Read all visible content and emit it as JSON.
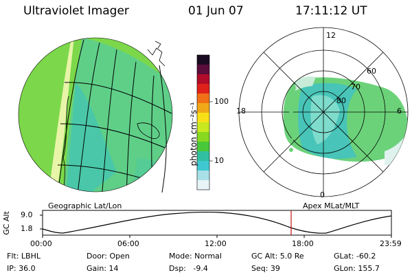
{
  "header": {
    "title": "Ultraviolet Imager",
    "date": "01 Jun 07",
    "time": "17:11:12 UT"
  },
  "colorbar": {
    "unit_label": "photon cm⁻²s⁻¹",
    "ticks": [
      "100",
      "10"
    ],
    "colors": [
      "#1a0b22",
      "#5a0c3a",
      "#b00c2a",
      "#e0201a",
      "#f07018",
      "#f0a818",
      "#f8e018",
      "#c8e820",
      "#88d820",
      "#48c838",
      "#30c0a0",
      "#40c8d0",
      "#a8e0e8",
      "#e8f4f8"
    ]
  },
  "geo_panel": {
    "label": "Geographic Lat/Lon"
  },
  "polar_panel": {
    "label": "Apex MLat/MLT",
    "mlt_labels": {
      "top": "12",
      "left": "18",
      "right": "6",
      "bottom": "0"
    },
    "lat_labels": [
      "60",
      "70",
      "80"
    ]
  },
  "altitude_plot": {
    "ylabel": "GC Alt",
    "yticks": [
      "9.0",
      "1.8"
    ],
    "xticks": [
      "00:00",
      "06:00",
      "12:00",
      "18:00",
      "23:59"
    ],
    "marker_time": "17:11:12"
  },
  "info": {
    "row1": {
      "filter": "Flt: LBHL",
      "door": "Door: Open",
      "mode": "Mode: Normal",
      "gc_alt": "GC Alt: 5.0 Re",
      "glat": "GLat: -60.2"
    },
    "row2": {
      "ip": "IP: 36.0",
      "gain": "Gain: 14",
      "dsp": "Dsp:   -9.4",
      "seq": "Seq: 39",
      "glon": "GLon: 155.7"
    }
  }
}
